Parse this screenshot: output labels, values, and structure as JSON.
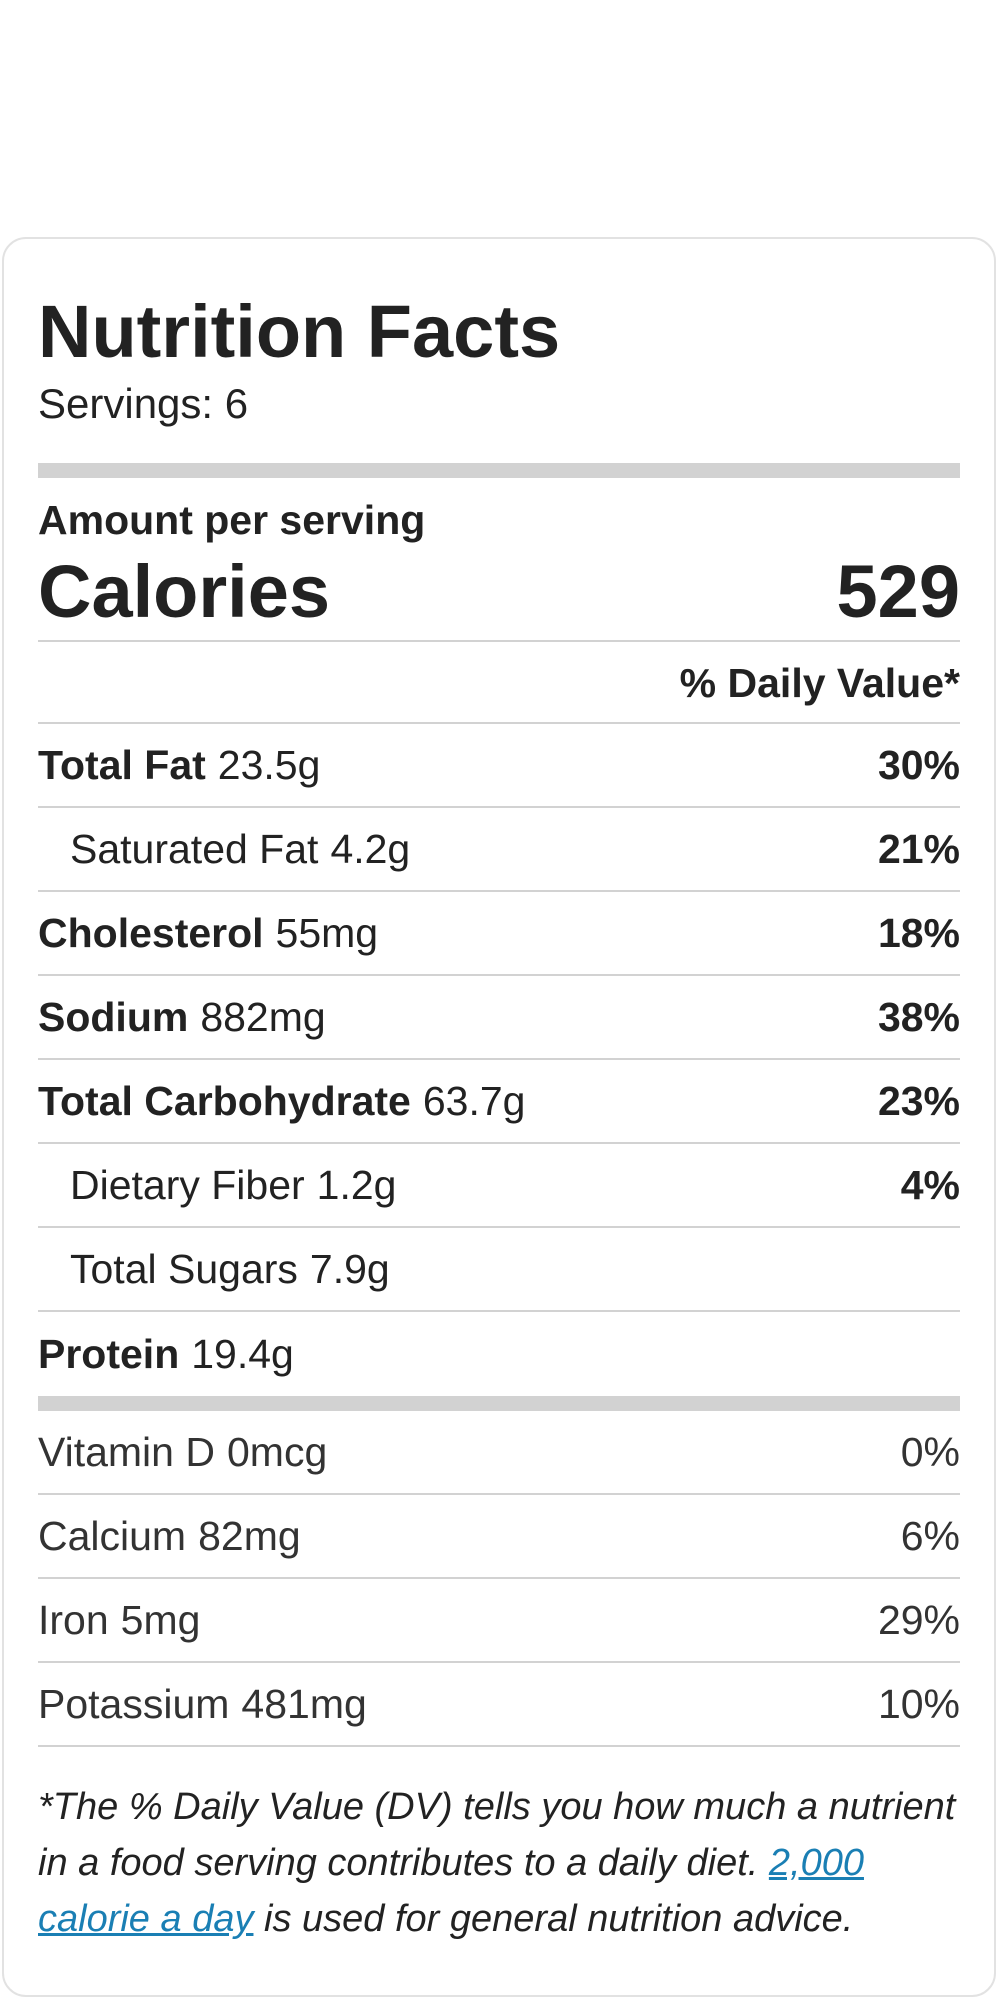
{
  "label": {
    "title": "Nutrition Facts",
    "servings": "Servings: 6",
    "amount_per_serving": "Amount per serving",
    "calories_label": "Calories",
    "calories_value": "529",
    "daily_value_header": "% Daily Value*"
  },
  "nutrients": [
    {
      "name": "Total Fat",
      "amount": "23.5g",
      "dv": "30%"
    },
    {
      "name": "Saturated Fat",
      "amount": "4.2g",
      "dv": "21%"
    },
    {
      "name": "Cholesterol",
      "amount": "55mg",
      "dv": "18%"
    },
    {
      "name": "Sodium",
      "amount": "882mg",
      "dv": "38%"
    },
    {
      "name": "Total Carbohydrate",
      "amount": "63.7g",
      "dv": "23%"
    },
    {
      "name": "Dietary Fiber",
      "amount": "1.2g",
      "dv": "4%"
    },
    {
      "name": "Total Sugars",
      "amount": "7.9g",
      "dv": ""
    },
    {
      "name": "Protein",
      "amount": "19.4g",
      "dv": ""
    }
  ],
  "vitamins": [
    {
      "name": "Vitamin D",
      "amount": "0mcg",
      "dv": "0%"
    },
    {
      "name": "Calcium",
      "amount": "82mg",
      "dv": "6%"
    },
    {
      "name": "Iron",
      "amount": "5mg",
      "dv": "29%"
    },
    {
      "name": "Potassium",
      "amount": "481mg",
      "dv": "10%"
    }
  ],
  "footnote": {
    "line1": "*The % Daily Value (DV) tells you how much a nutrient in a food serving contributes to a daily diet.",
    "link_text": "2,000 calorie a day",
    "line2": " is used for general nutrition advice."
  },
  "colors": {
    "divider": "#d2d2d2",
    "link": "#1a7fb4",
    "text": "#222222"
  }
}
